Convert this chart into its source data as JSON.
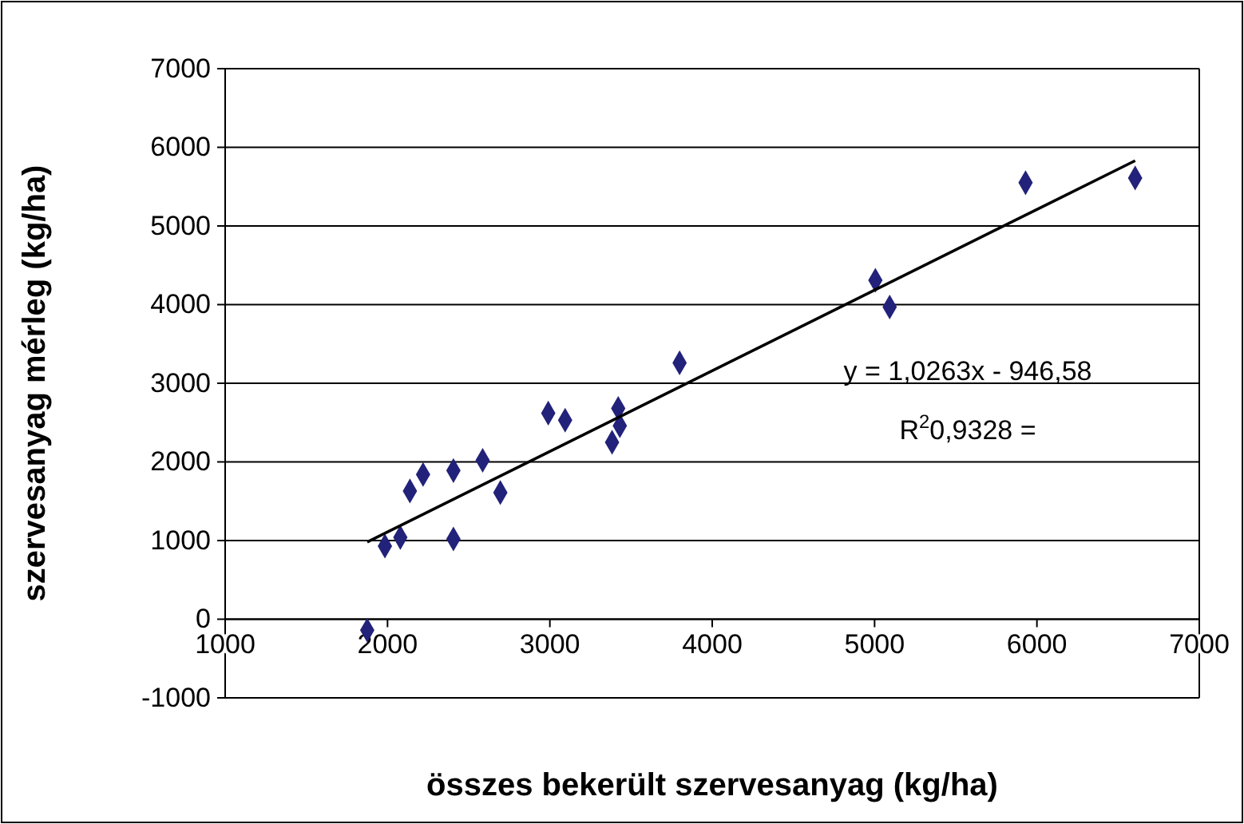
{
  "chart_data": {
    "type": "scatter",
    "xlabel": "összes bekerült szervesanyag (kg/ha)",
    "ylabel": "szervesanyag mérleg (kg/ha)",
    "xlim": [
      1000,
      7000
    ],
    "xticks": [
      1000,
      2000,
      3000,
      4000,
      5000,
      6000,
      7000
    ],
    "ylim": [
      -1000,
      7000
    ],
    "yticks": [
      -1000,
      0,
      1000,
      2000,
      3000,
      4000,
      5000,
      6000,
      7000
    ],
    "grid": "y",
    "marker": "diamond",
    "series": [
      {
        "color": "#22227a",
        "x": [
          1875,
          1984,
          2079,
          2406,
          2138,
          2219,
          2406,
          2586,
          2695,
          2990,
          3094,
          3383,
          3421,
          3431,
          3799,
          5005,
          5093,
          5930,
          6605
        ],
        "values": [
          -140,
          930,
          1040,
          1020,
          1630,
          1840,
          1890,
          2020,
          1610,
          2620,
          2530,
          2250,
          2680,
          2460,
          3260,
          4310,
          3970,
          5550,
          5610
        ]
      },
      {
        "type": "line",
        "marker": "none",
        "color": "#000000",
        "x": [
          1875,
          6605
        ],
        "values": [
          980,
          5830
        ]
      }
    ],
    "annotations": [
      "y = 1,0263x - 946,58",
      "R$^{2}$0,9328 ="
    ]
  }
}
